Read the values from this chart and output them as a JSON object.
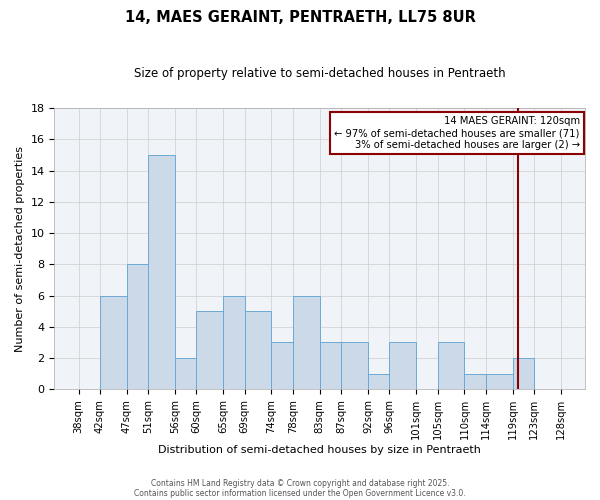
{
  "title": "14, MAES GERAINT, PENTRAETH, LL75 8UR",
  "subtitle": "Size of property relative to semi-detached houses in Pentraeth",
  "xlabel": "Distribution of semi-detached houses by size in Pentraeth",
  "ylabel": "Number of semi-detached properties",
  "bin_edges": [
    38,
    42,
    47,
    51,
    56,
    60,
    65,
    69,
    74,
    78,
    83,
    87,
    92,
    96,
    101,
    105,
    110,
    114,
    119,
    123,
    128
  ],
  "bin_labels": [
    "38sqm",
    "42sqm",
    "47sqm",
    "51sqm",
    "56sqm",
    "60sqm",
    "65sqm",
    "69sqm",
    "74sqm",
    "78sqm",
    "83sqm",
    "87sqm",
    "92sqm",
    "96sqm",
    "101sqm",
    "105sqm",
    "110sqm",
    "114sqm",
    "119sqm",
    "123sqm",
    "128sqm"
  ],
  "bar_heights": [
    0,
    6,
    8,
    15,
    2,
    5,
    6,
    5,
    3,
    6,
    3,
    3,
    1,
    3,
    0,
    3,
    1,
    1,
    2,
    0
  ],
  "bar_color": "#ccd9e8",
  "bar_edgecolor": "#6aaad4",
  "property_line_value": 120,
  "property_line_color": "#8b0000",
  "annotation_title": "14 MAES GERAINT: 120sqm",
  "annotation_line1": "← 97% of semi-detached houses are smaller (71)",
  "annotation_line2": "3% of semi-detached houses are larger (2) →",
  "annotation_box_edgecolor": "#8b0000",
  "highlight_bin_index": 18,
  "ylim": [
    0,
    18
  ],
  "yticks": [
    0,
    2,
    4,
    6,
    8,
    10,
    12,
    14,
    16,
    18
  ],
  "grid_color": "#cccccc",
  "background_color": "#f0f4f8",
  "footer1": "Contains HM Land Registry data © Crown copyright and database right 2025.",
  "footer2": "Contains public sector information licensed under the Open Government Licence v3.0."
}
